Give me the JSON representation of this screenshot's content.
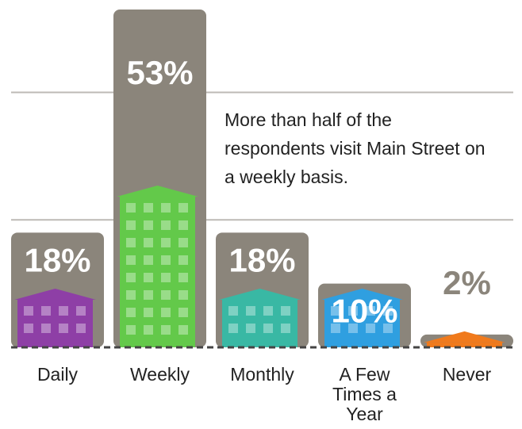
{
  "chart_data": {
    "type": "bar",
    "categories": [
      "Daily",
      "Weekly",
      "Monthly",
      "A Few Times a Year",
      "Never"
    ],
    "values": [
      18,
      53,
      18,
      10,
      2
    ],
    "value_labels": [
      "18%",
      "53%",
      "18%",
      "10%",
      "2%"
    ],
    "color": "#8b857b",
    "yticks": [
      20,
      40
    ],
    "grid": true,
    "annotation": "More than half of the respondents visit Main Street on a weekly basis."
  }
}
